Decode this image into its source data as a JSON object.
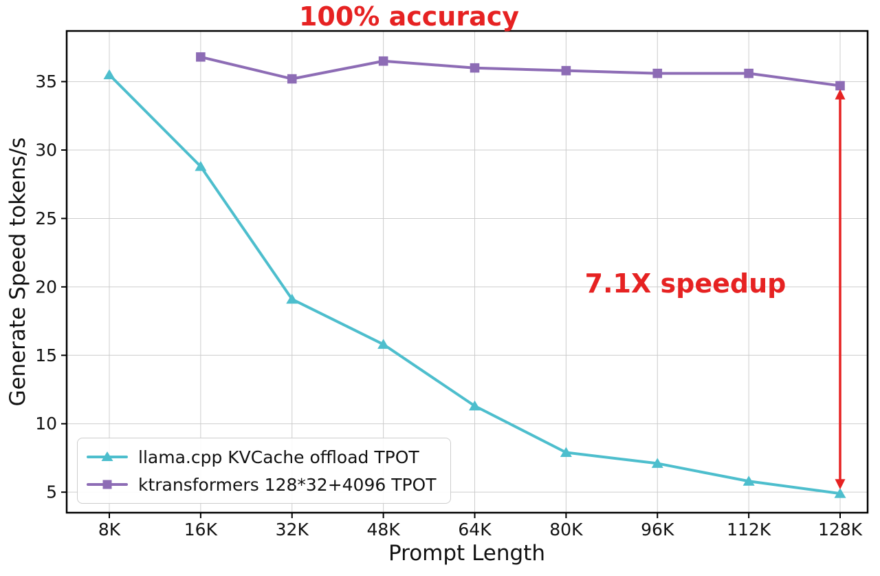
{
  "annotations": {
    "accuracy_label": "100% accuracy",
    "speedup_label": "7.1X speedup"
  },
  "colors": {
    "accent_red": "#e62222",
    "series_teal": "#4dbecd",
    "series_purple": "#8d6cb5",
    "grid": "#cccccc",
    "axis": "#000000"
  },
  "chart_data": {
    "type": "line",
    "title": "100% accuracy",
    "xlabel": "Prompt Length",
    "ylabel": "Generate Speed tokens/s",
    "categories": [
      "8K",
      "16K",
      "32K",
      "48K",
      "64K",
      "80K",
      "96K",
      "112K",
      "128K"
    ],
    "yticks": [
      5,
      10,
      15,
      20,
      25,
      30,
      35
    ],
    "ylim": [
      3.5,
      38.7
    ],
    "grid": true,
    "legend_position": "lower left",
    "series": [
      {
        "name": "llama.cpp KVCache offload TPOT",
        "color": "#4dbecd",
        "marker": "triangle",
        "values": [
          35.5,
          28.8,
          19.1,
          15.8,
          11.3,
          7.9,
          7.1,
          5.8,
          4.9
        ]
      },
      {
        "name": "ktransformers 128*32+4096 TPOT",
        "color": "#8d6cb5",
        "marker": "square",
        "values": [
          null,
          36.8,
          35.2,
          36.5,
          36.0,
          35.8,
          35.6,
          35.6,
          34.7
        ]
      }
    ],
    "annotation_arrow": {
      "x_category": "128K",
      "y_from": 34.45,
      "y_to": 5.2,
      "color": "#e62222",
      "label": "7.1X speedup"
    }
  }
}
